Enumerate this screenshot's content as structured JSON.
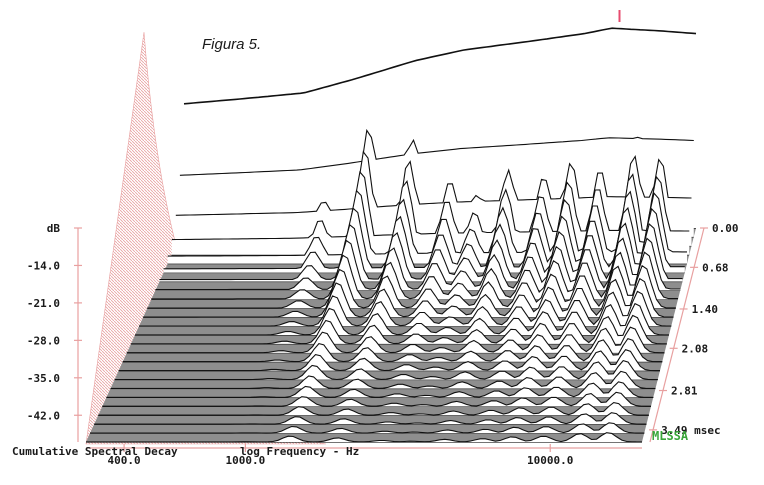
{
  "figure_caption": "Figura 5.",
  "brand": "MLSSA",
  "chart_data": {
    "type": "waterfall",
    "title": "Cumulative Spectral Decay",
    "xlabel": "log Frequency - Hz",
    "x_scale": "log",
    "xlim": [
      300,
      20000
    ],
    "x_ticks": [
      {
        "value": 400,
        "label": "400.0"
      },
      {
        "value": 1000,
        "label": "1000.0"
      },
      {
        "value": 10000,
        "label": "10000.0"
      }
    ],
    "ylabel_unit": "dB",
    "ylim": [
      -47,
      -7
    ],
    "y_ticks": [
      {
        "value": -7,
        "label": "dB"
      },
      {
        "value": -14,
        "label": "-14.0"
      },
      {
        "value": -21,
        "label": "-21.0"
      },
      {
        "value": -28,
        "label": "-28.0"
      },
      {
        "value": -35,
        "label": "-35.0"
      },
      {
        "value": -42,
        "label": "-42.0"
      }
    ],
    "time_unit": "msec",
    "time_ticks": [
      {
        "value": 0.0,
        "label": "0.00"
      },
      {
        "value": 0.68,
        "label": "0.68"
      },
      {
        "value": 1.4,
        "label": "1.40"
      },
      {
        "value": 2.08,
        "label": "2.08"
      },
      {
        "value": 2.81,
        "label": "2.81"
      },
      {
        "value": 3.49,
        "label": "3.49 msec"
      }
    ],
    "time_max": 3.7,
    "slice_count": 24,
    "first_slice_response": [
      [
        300,
        -24
      ],
      [
        500,
        -23
      ],
      [
        800,
        -22
      ],
      [
        1200,
        -19.5
      ],
      [
        2000,
        -16
      ],
      [
        3000,
        -14
      ],
      [
        5000,
        -12.5
      ],
      [
        8000,
        -11
      ],
      [
        10000,
        -10
      ],
      [
        15000,
        -10.5
      ],
      [
        20000,
        -11
      ]
    ],
    "decay_resonances": [
      {
        "freq": 1000,
        "level": -33,
        "persistence": 0.3
      },
      {
        "freq": 1400,
        "level": -24,
        "persistence": 0.6
      },
      {
        "freq": 2000,
        "level": -26,
        "persistence": 0.55
      },
      {
        "freq": 2800,
        "level": -30,
        "persistence": 0.45
      },
      {
        "freq": 3500,
        "level": -33,
        "persistence": 0.4
      },
      {
        "freq": 4500,
        "level": -28,
        "persistence": 0.5
      },
      {
        "freq": 6000,
        "level": -30,
        "persistence": 0.55
      },
      {
        "freq": 7500,
        "level": -27,
        "persistence": 0.6
      },
      {
        "freq": 9500,
        "level": -29,
        "persistence": 0.65
      },
      {
        "freq": 12500,
        "level": -26,
        "persistence": 0.7
      },
      {
        "freq": 15500,
        "level": -27,
        "persistence": 0.75
      }
    ],
    "colors": {
      "curves": "#111111",
      "floor": "#8e8e8e",
      "floor_lines": "#202020",
      "start_marker": "#e74c6f",
      "left_hatch": "#e8a0a0",
      "brand": "#3aa63a"
    }
  }
}
